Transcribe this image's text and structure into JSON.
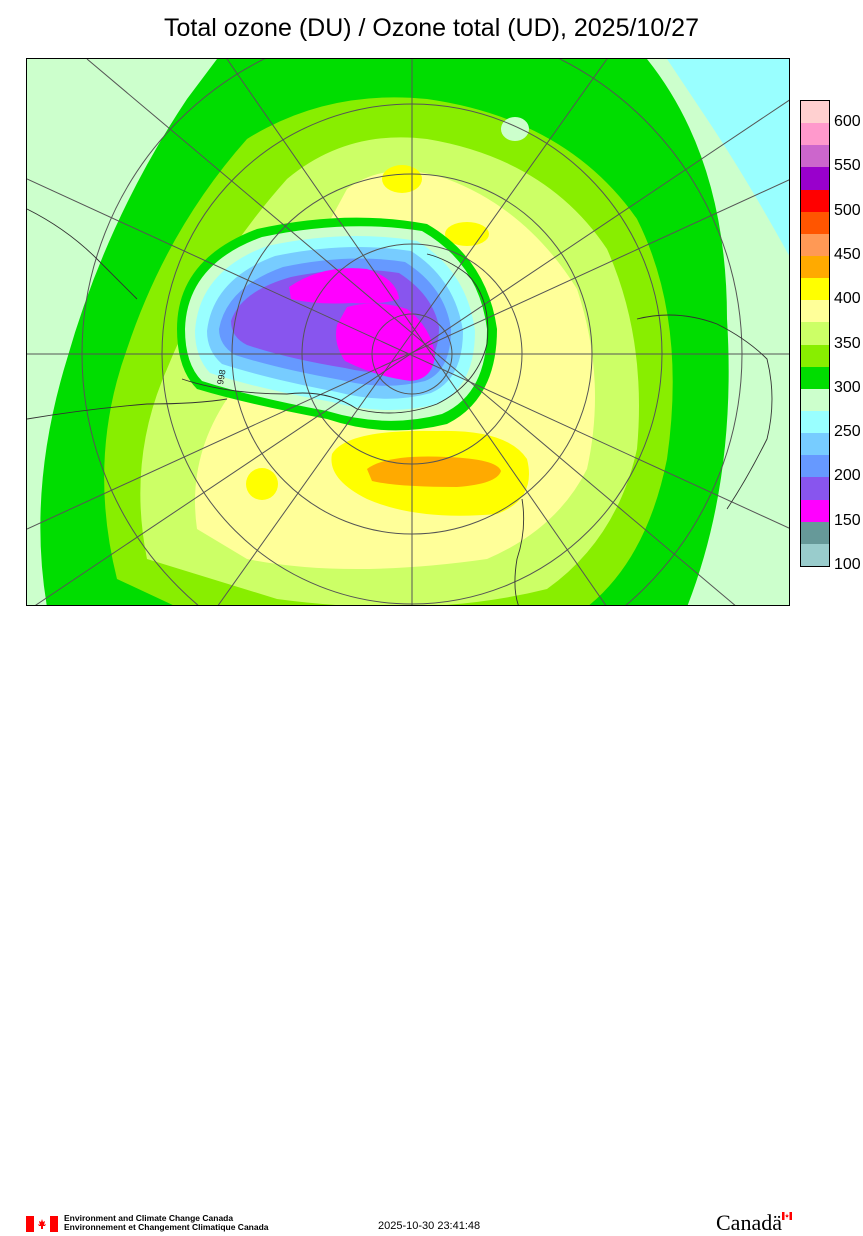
{
  "title": "Total ozone (DU) / Ozone total (UD), 2025/10/27",
  "legend": {
    "labels": [
      "600",
      "550",
      "500",
      "450",
      "400",
      "350",
      "300",
      "250",
      "200",
      "150",
      "100"
    ],
    "colors": [
      "#ffd0d0",
      "#ff99cc",
      "#cc66cc",
      "#9900cc",
      "#ff0000",
      "#ff5500",
      "#ff9955",
      "#ffaa00",
      "#ffff00",
      "#ffff99",
      "#ccff66",
      "#88ee00",
      "#00dd00",
      "#ccffcc",
      "#99ffff",
      "#77ccff",
      "#6699ff",
      "#8855ee",
      "#ff00ff",
      "#669999",
      "#99cccc"
    ]
  },
  "map_colors": {
    "ocean_cyan": "#99ffff",
    "band_300": "#ccffcc",
    "band_325": "#00dd00",
    "band_350": "#88ee00",
    "band_375": "#ccff66",
    "band_400": "#ffff99",
    "band_425": "#ffff00",
    "band_450": "#ffaa00",
    "hole_250": "#99ffff",
    "hole_225": "#77ccff",
    "hole_200": "#6699ff",
    "hole_175": "#8855ee",
    "hole_150": "#ff00ff"
  },
  "map_label": "998",
  "footer": {
    "agency_en": "Environment and Climate Change Canada",
    "agency_fr": "Environnement et Changement Climatique Canada",
    "timestamp": "2025-10-30 23:41:48",
    "wordmark": "Canadä"
  }
}
